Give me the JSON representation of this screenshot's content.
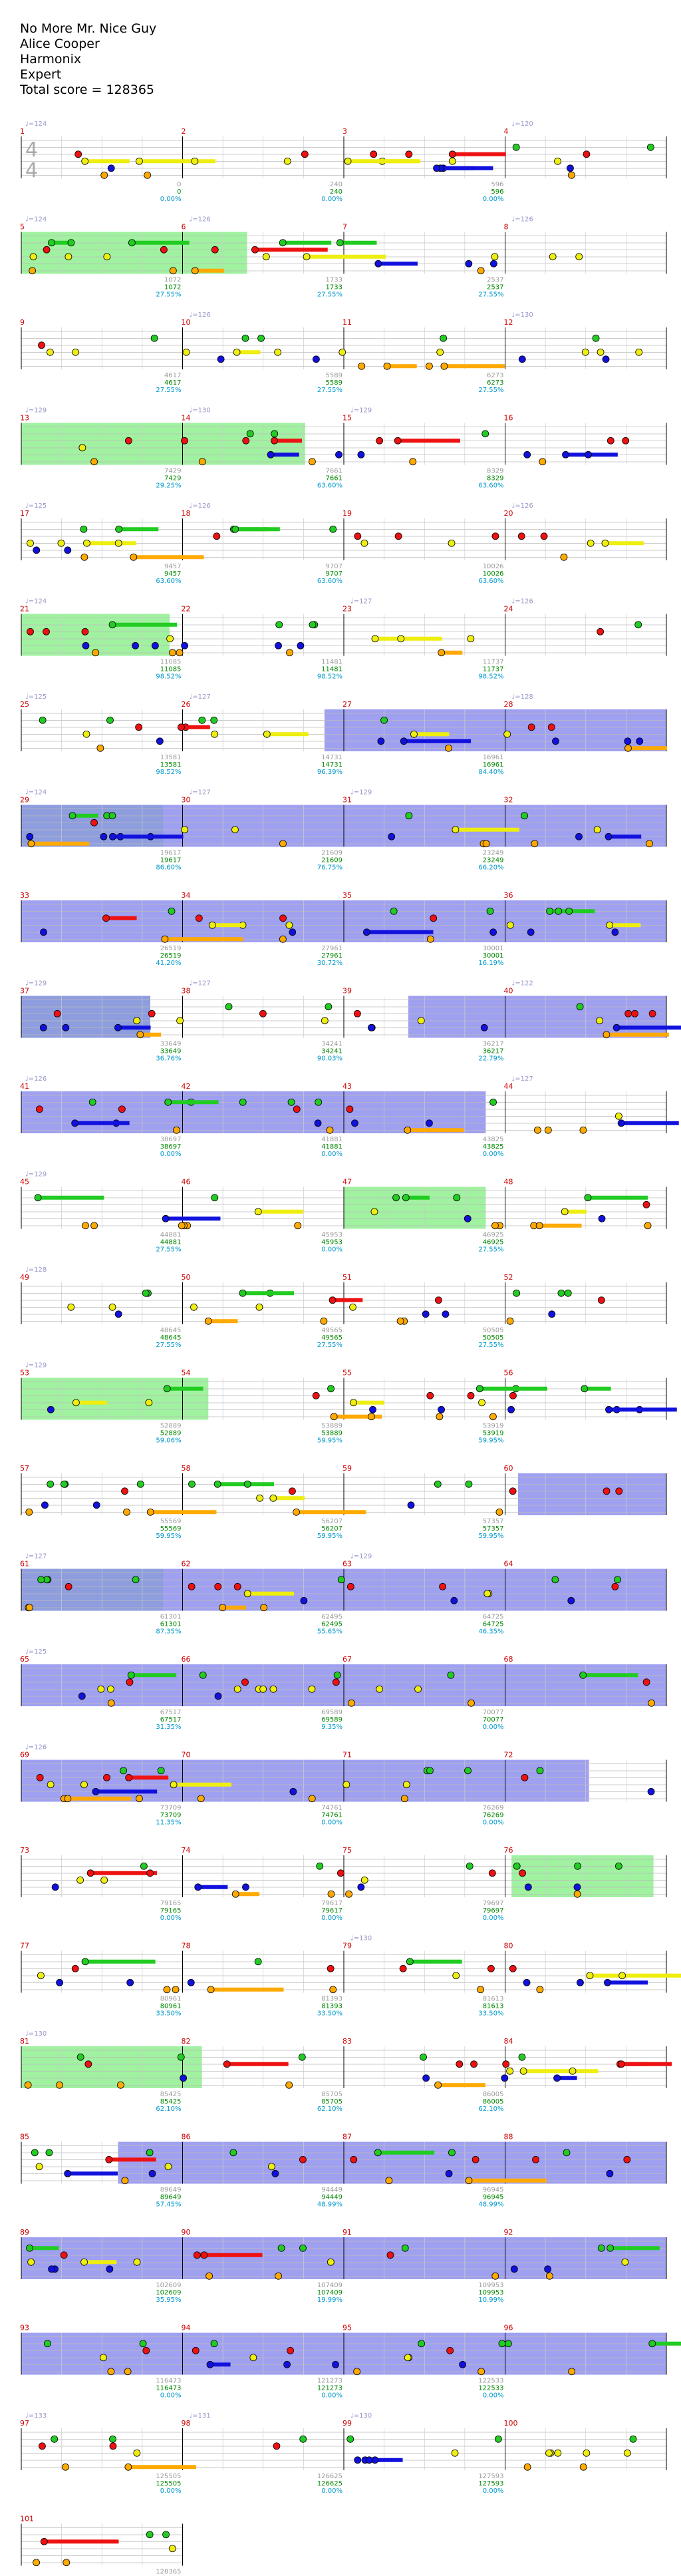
{
  "song": {
    "title": "No More Mr. Nice Guy",
    "artist": "Alice Cooper",
    "charter": "Harmonix",
    "difficulty": "Expert",
    "total_score_label": "Total score = 128365"
  },
  "time_signature": [
    "4",
    "4"
  ],
  "colors": {
    "green": "#22cc22",
    "red": "#ee1111",
    "yellow": "#eeee11",
    "blue": "#1111dd",
    "orange": "#ffaa00",
    "star_power": "#88ee88",
    "overdrive": "#8888ee",
    "measure_number": "#cc0000",
    "score_text": "#008800",
    "pct_text": "#0099cc"
  },
  "rows": [
    {
      "measures": [
        1,
        2,
        3,
        4
      ],
      "bpm": [
        "124",
        "",
        "",
        "120"
      ],
      "ticks": [
        "",
        "0",
        "240",
        "596"
      ],
      "scores": [
        "",
        "0",
        "240",
        "596"
      ],
      "pcts": [
        "",
        "0.00%",
        "0.00%",
        "0.00%"
      ],
      "sp": [],
      "od": []
    },
    {
      "measures": [
        5,
        6,
        7,
        8
      ],
      "bpm": [
        "124",
        "126",
        "",
        "126"
      ],
      "ticks": [
        "",
        "1072",
        "1733",
        "2537"
      ],
      "scores": [
        "",
        "1072",
        "1733",
        "2537"
      ],
      "pcts": [
        "",
        "27.55%",
        "27.55%",
        "27.55%"
      ],
      "sp": [
        [
          0,
          0.35
        ]
      ],
      "od": []
    },
    {
      "measures": [
        9,
        10,
        11,
        12
      ],
      "bpm": [
        "",
        "126",
        "",
        "130"
      ],
      "ticks": [
        "",
        "4617",
        "5589",
        "6273"
      ],
      "scores": [
        "",
        "4617",
        "5589",
        "6273"
      ],
      "pcts": [
        "",
        "27.55%",
        "27.55%",
        "27.55%"
      ],
      "sp": [],
      "od": []
    },
    {
      "measures": [
        13,
        14,
        15,
        16
      ],
      "bpm": [
        "129",
        "130",
        "129",
        ""
      ],
      "ticks": [
        "",
        "7429",
        "7661",
        "8329"
      ],
      "scores": [
        "",
        "7429",
        "7661",
        "8329"
      ],
      "pcts": [
        "",
        "29.25%",
        "63.60%",
        "63.60%"
      ],
      "sp": [
        [
          0,
          0.44
        ]
      ],
      "od": []
    },
    {
      "measures": [
        17,
        18,
        19,
        20
      ],
      "bpm": [
        "125",
        "126",
        "",
        "126"
      ],
      "ticks": [
        "",
        "9457",
        "9707",
        "10026"
      ],
      "scores": [
        "",
        "9457",
        "9707",
        "10026"
      ],
      "pcts": [
        "",
        "63.60%",
        "63.60%",
        "63.60%"
      ],
      "sp": [],
      "od": []
    },
    {
      "measures": [
        21,
        22,
        23,
        24
      ],
      "bpm": [
        "124",
        "",
        "127",
        "126"
      ],
      "ticks": [
        "",
        "11085",
        "11481",
        "11737"
      ],
      "scores": [
        "",
        "11085",
        "11481",
        "11737"
      ],
      "pcts": [
        "",
        "98.52%",
        "98.52%",
        "98.52%"
      ],
      "sp": [
        [
          0,
          0.23
        ]
      ],
      "od": []
    },
    {
      "measures": [
        25,
        26,
        27,
        28
      ],
      "bpm": [
        "125",
        "127",
        "",
        "128"
      ],
      "ticks": [
        "",
        "13581",
        "14731",
        "16961"
      ],
      "scores": [
        "",
        "13581",
        "14731",
        "16961"
      ],
      "pcts": [
        "",
        "98.52%",
        "96.39%",
        "84.40%"
      ],
      "sp": [],
      "od": [
        [
          0.47,
          1
        ]
      ]
    },
    {
      "measures": [
        29,
        30,
        31,
        32
      ],
      "bpm": [
        "124",
        "127",
        "129",
        ""
      ],
      "ticks": [
        "",
        "19617",
        "21609",
        "23249"
      ],
      "scores": [
        "",
        "19617",
        "21609",
        "23249"
      ],
      "pcts": [
        "",
        "86.60%",
        "76.75%",
        "66.20%"
      ],
      "sp": [
        [
          0,
          0.22
        ]
      ],
      "od": [
        [
          0,
          1
        ]
      ]
    },
    {
      "measures": [
        33,
        34,
        35,
        36
      ],
      "bpm": [
        "",
        "",
        "",
        ""
      ],
      "ticks": [
        "",
        "26519",
        "27961",
        "30001"
      ],
      "scores": [
        "",
        "26519",
        "27961",
        "30001"
      ],
      "pcts": [
        "",
        "41.20%",
        "30.72%",
        "16.19%"
      ],
      "sp": [],
      "od": [
        [
          0,
          1
        ]
      ]
    },
    {
      "measures": [
        37,
        38,
        39,
        40
      ],
      "bpm": [
        "129",
        "127",
        "",
        "122"
      ],
      "ticks": [
        "",
        "33649",
        "34241",
        "36217"
      ],
      "scores": [
        "",
        "33649",
        "34241",
        "36217"
      ],
      "pcts": [
        "",
        "36.76%",
        "90.03%",
        "22.79%"
      ],
      "sp": [
        [
          0,
          0.2
        ]
      ],
      "od": [
        [
          0,
          0.2
        ],
        [
          0.6,
          1
        ]
      ]
    },
    {
      "measures": [
        41,
        42,
        43,
        44
      ],
      "bpm": [
        "126",
        "",
        "",
        "127"
      ],
      "ticks": [
        "",
        "38697",
        "41881",
        "43825"
      ],
      "scores": [
        "",
        "38697",
        "41881",
        "43825"
      ],
      "pcts": [
        "",
        "0.00%",
        "0.00%",
        "0.00%"
      ],
      "sp": [],
      "od": [
        [
          0,
          0.72
        ]
      ]
    },
    {
      "measures": [
        45,
        46,
        47,
        48
      ],
      "bpm": [
        "129",
        "",
        "",
        ""
      ],
      "ticks": [
        "",
        "44881",
        "45953",
        "46925"
      ],
      "scores": [
        "",
        "44881",
        "45953",
        "46925"
      ],
      "pcts": [
        "",
        "27.55%",
        "0.00%",
        "27.55%"
      ],
      "sp": [
        [
          0.5,
          0.72
        ]
      ],
      "od": []
    },
    {
      "measures": [
        49,
        50,
        51,
        52
      ],
      "bpm": [
        "128",
        "",
        "",
        ""
      ],
      "ticks": [
        "",
        "48645",
        "49565",
        "50505"
      ],
      "scores": [
        "",
        "48645",
        "49565",
        "50505"
      ],
      "pcts": [
        "",
        "27.55%",
        "27.55%",
        "27.55%"
      ],
      "sp": [],
      "od": []
    },
    {
      "measures": [
        53,
        54,
        55,
        56
      ],
      "bpm": [
        "129",
        "",
        "",
        ""
      ],
      "ticks": [
        "",
        "52889",
        "53889",
        "53919"
      ],
      "scores": [
        "",
        "52889",
        "53889",
        "53919"
      ],
      "pcts": [
        "",
        "59.06%",
        "59.95%",
        "59.95%"
      ],
      "sp": [
        [
          0,
          0.29
        ]
      ],
      "od": []
    },
    {
      "measures": [
        57,
        58,
        59,
        60
      ],
      "bpm": [
        "",
        "",
        "",
        ""
      ],
      "ticks": [
        "",
        "55569",
        "56207",
        "57357"
      ],
      "scores": [
        "",
        "55569",
        "56207",
        "57357"
      ],
      "pcts": [
        "",
        "59.95%",
        "59.95%",
        "59.95%"
      ],
      "sp": [],
      "od": [
        [
          0.77,
          1
        ]
      ]
    },
    {
      "measures": [
        61,
        62,
        63,
        64
      ],
      "bpm": [
        "127",
        "",
        "129",
        ""
      ],
      "ticks": [
        "",
        "61301",
        "62495",
        "64725"
      ],
      "scores": [
        "",
        "61301",
        "62495",
        "64725"
      ],
      "pcts": [
        "",
        "87.35%",
        "55.65%",
        "46.35%"
      ],
      "sp": [
        [
          0,
          0.22
        ]
      ],
      "od": [
        [
          0,
          1
        ]
      ]
    },
    {
      "measures": [
        65,
        66,
        67,
        68
      ],
      "bpm": [
        "125",
        "",
        "",
        ""
      ],
      "ticks": [
        "",
        "67517",
        "69589",
        "70077"
      ],
      "scores": [
        "",
        "67517",
        "69589",
        "70077"
      ],
      "pcts": [
        "",
        "31.35%",
        "9.35%",
        "0.00%"
      ],
      "sp": [],
      "od": [
        [
          0,
          1
        ]
      ]
    },
    {
      "measures": [
        69,
        70,
        71,
        72
      ],
      "bpm": [
        "126",
        "",
        "",
        ""
      ],
      "ticks": [
        "",
        "73709",
        "74761",
        "76269"
      ],
      "scores": [
        "",
        "73709",
        "74761",
        "76269"
      ],
      "pcts": [
        "",
        "11.35%",
        "0.00%",
        "0.00%"
      ],
      "sp": [],
      "od": [
        [
          0,
          0.88
        ]
      ]
    },
    {
      "measures": [
        73,
        74,
        75,
        76
      ],
      "bpm": [
        "",
        "",
        "",
        ""
      ],
      "ticks": [
        "",
        "79165",
        "79617",
        "79697"
      ],
      "scores": [
        "",
        "79165",
        "79617",
        "79697"
      ],
      "pcts": [
        "",
        "0.00%",
        "0.00%",
        "0.00%"
      ],
      "sp": [
        [
          0.76,
          0.98
        ]
      ],
      "od": []
    },
    {
      "measures": [
        77,
        78,
        79,
        80
      ],
      "bpm": [
        "",
        "",
        "130",
        ""
      ],
      "ticks": [
        "",
        "80961",
        "81393",
        "81613"
      ],
      "scores": [
        "",
        "80961",
        "81393",
        "81613"
      ],
      "pcts": [
        "",
        "33.50%",
        "33.50%",
        "33.50%"
      ],
      "sp": [],
      "od": []
    },
    {
      "measures": [
        81,
        82,
        83,
        84
      ],
      "bpm": [
        "130",
        "",
        "",
        ""
      ],
      "ticks": [
        "",
        "85425",
        "85705",
        "86005"
      ],
      "scores": [
        "",
        "85425",
        "85705",
        "86005"
      ],
      "pcts": [
        "",
        "62.10%",
        "62.10%",
        "62.10%"
      ],
      "sp": [
        [
          0,
          0.28
        ]
      ],
      "od": []
    },
    {
      "measures": [
        85,
        86,
        87,
        88
      ],
      "bpm": [
        "",
        "",
        "",
        ""
      ],
      "ticks": [
        "",
        "89649",
        "94449",
        "96945"
      ],
      "scores": [
        "",
        "89649",
        "94449",
        "96945"
      ],
      "pcts": [
        "",
        "57.45%",
        "48.99%",
        "48.99%"
      ],
      "sp": [],
      "od": [
        [
          0.15,
          1
        ]
      ]
    },
    {
      "measures": [
        89,
        90,
        91,
        92
      ],
      "bpm": [
        "",
        "",
        "",
        ""
      ],
      "ticks": [
        "",
        "102609",
        "107409",
        "109953"
      ],
      "scores": [
        "",
        "102609",
        "107409",
        "109953"
      ],
      "pcts": [
        "",
        "35.95%",
        "19.99%",
        "10.99%"
      ],
      "sp": [],
      "od": [
        [
          0,
          1
        ]
      ]
    },
    {
      "measures": [
        93,
        94,
        95,
        96
      ],
      "bpm": [
        "",
        "",
        "",
        ""
      ],
      "ticks": [
        "",
        "116473",
        "121273",
        "122533"
      ],
      "scores": [
        "",
        "116473",
        "121273",
        "122533"
      ],
      "pcts": [
        "",
        "0.00%",
        "0.00%",
        "0.00%"
      ],
      "sp": [],
      "od": [
        [
          0,
          1
        ]
      ]
    },
    {
      "measures": [
        97,
        98,
        99,
        100
      ],
      "bpm": [
        "133",
        "131",
        "130",
        ""
      ],
      "ticks": [
        "",
        "125505",
        "126625",
        "127593"
      ],
      "scores": [
        "",
        "125505",
        "126625",
        "127593"
      ],
      "pcts": [
        "",
        "0.00%",
        "0.00%",
        "0.00%"
      ],
      "sp": [],
      "od": []
    },
    {
      "measures": [
        101
      ],
      "bpm": [
        ""
      ],
      "ticks": [
        "128365"
      ],
      "scores": [
        "128365"
      ],
      "pcts": [
        "0.00%"
      ],
      "sp": [],
      "od": []
    }
  ]
}
